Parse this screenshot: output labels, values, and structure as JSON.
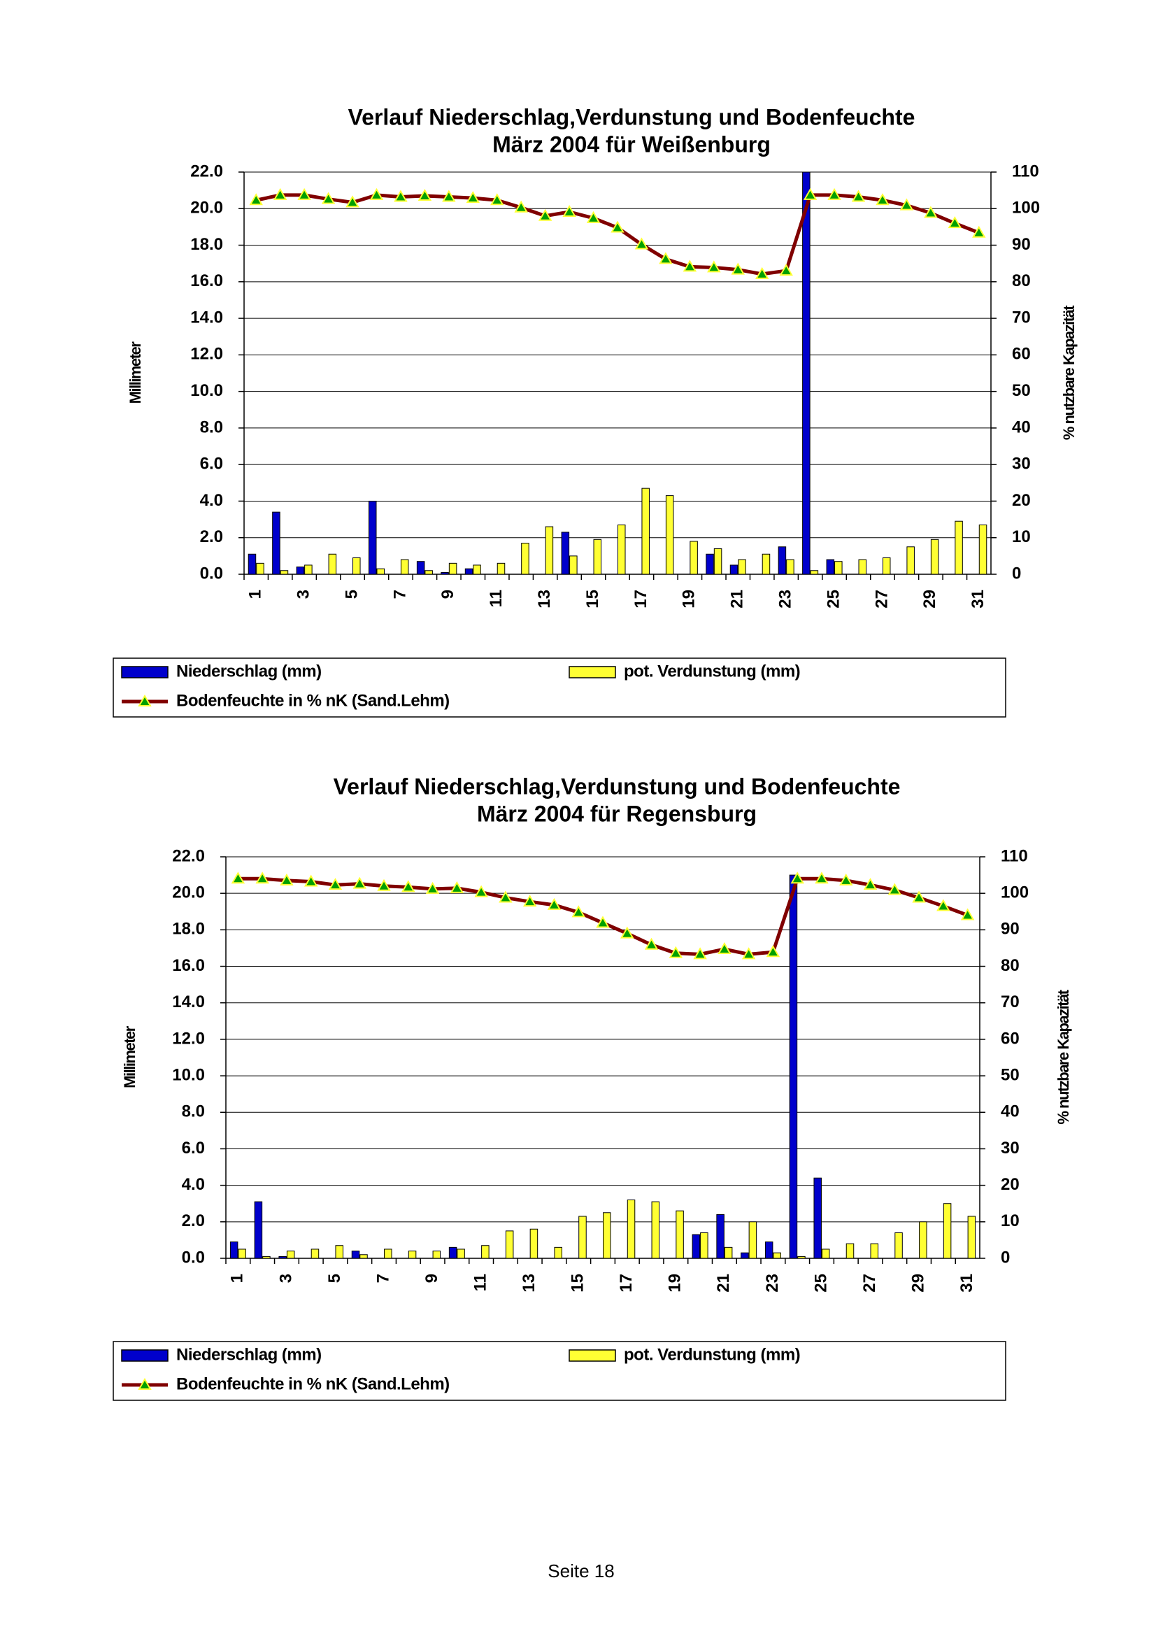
{
  "chart_data": [
    {
      "type": "bar-line",
      "title": "Verlauf Niederschlag,Verdunstung und Bodenfeuchte",
      "subtitle": "März 2004 für Weißenburg",
      "ylabel": "Millimeter",
      "y2label": "% nutzbare Kapazität",
      "categories": [
        "1",
        null,
        "3",
        null,
        "5",
        null,
        "7",
        null,
        "9",
        null,
        "11",
        null,
        "13",
        null,
        "15",
        null,
        "17",
        null,
        "19",
        null,
        "21",
        null,
        "23",
        null,
        "25",
        null,
        "27",
        null,
        "29",
        null,
        "31"
      ],
      "ylim": [
        0,
        22
      ],
      "yticks": [
        {
          "value": 0,
          "label": "0.0"
        },
        {
          "value": 2,
          "label": "2.0"
        },
        {
          "value": 4,
          "label": "4.0"
        },
        {
          "value": 6,
          "label": "6.0"
        },
        {
          "value": 8,
          "label": "8.0"
        },
        {
          "value": 10,
          "label": "10.0"
        },
        {
          "value": 12,
          "label": "12.0"
        },
        {
          "value": 14,
          "label": "14.0"
        },
        {
          "value": 16,
          "label": "16.0"
        },
        {
          "value": 18,
          "label": "18.0"
        },
        {
          "value": 20,
          "label": "20.0"
        },
        {
          "value": 22,
          "label": "22.0"
        }
      ],
      "y2lim": [
        0,
        110
      ],
      "y2ticks": [
        0,
        10,
        20,
        30,
        40,
        50,
        60,
        70,
        80,
        90,
        100,
        110
      ],
      "grid": true,
      "series": [
        {
          "name": "Niederschlag (mm)",
          "type": "bar",
          "color": "#0000cc",
          "values": [
            1.1,
            3.4,
            0.4,
            0,
            0,
            4.0,
            0,
            0.7,
            0.1,
            0.3,
            0,
            0,
            0,
            2.3,
            0,
            0,
            0,
            0,
            0,
            1.1,
            0.5,
            0,
            1.5,
            22.0,
            0.8,
            0,
            0,
            0,
            0,
            0,
            0
          ]
        },
        {
          "name": "pot. Verdunstung (mm)",
          "type": "bar",
          "color": "#ffff33",
          "values": [
            0.6,
            0.2,
            0.5,
            1.1,
            0.9,
            0.3,
            0.8,
            0.2,
            0.6,
            0.5,
            0.6,
            1.7,
            2.6,
            1.0,
            1.9,
            2.7,
            4.7,
            4.3,
            1.8,
            1.4,
            0.8,
            1.1,
            0.8,
            0.2,
            0.7,
            0.8,
            0.9,
            1.5,
            1.9,
            2.9,
            2.7
          ]
        },
        {
          "name": "Bodenfeuchte in % nK (Sand.Lehm)",
          "type": "line",
          "axis": "y2",
          "color": "#800000",
          "marker_color": "#00a000",
          "values": [
            102.3,
            103.7,
            103.7,
            102.6,
            101.7,
            103.7,
            103.2,
            103.5,
            103.2,
            102.9,
            102.3,
            100.3,
            98.0,
            99.1,
            97.4,
            94.8,
            90.2,
            86.2,
            84.1,
            83.9,
            83.3,
            82.1,
            83.0,
            103.7,
            103.7,
            103.2,
            102.3,
            100.9,
            98.8,
            96.0,
            93.4
          ]
        }
      ]
    },
    {
      "type": "bar-line",
      "title": "Verlauf Niederschlag,Verdunstung und Bodenfeuchte",
      "subtitle": "März 2004 für Regensburg",
      "ylabel": "Millimeter",
      "y2label": "% nutzbare Kapazität",
      "categories": [
        "1",
        null,
        "3",
        null,
        "5",
        null,
        "7",
        null,
        "9",
        null,
        "11",
        null,
        "13",
        null,
        "15",
        null,
        "17",
        null,
        "19",
        null,
        "21",
        null,
        "23",
        null,
        "25",
        null,
        "27",
        null,
        "29",
        null,
        "31"
      ],
      "ylim": [
        0,
        22
      ],
      "yticks": [
        {
          "value": 0,
          "label": "0.0"
        },
        {
          "value": 2,
          "label": "2.0"
        },
        {
          "value": 4,
          "label": "4.0"
        },
        {
          "value": 6,
          "label": "6.0"
        },
        {
          "value": 8,
          "label": "8.0"
        },
        {
          "value": 10,
          "label": "10.0"
        },
        {
          "value": 12,
          "label": "12.0"
        },
        {
          "value": 14,
          "label": "14.0"
        },
        {
          "value": 16,
          "label": "16.0"
        },
        {
          "value": 18,
          "label": "18.0"
        },
        {
          "value": 20,
          "label": "20.0"
        },
        {
          "value": 22,
          "label": "22.0"
        }
      ],
      "y2lim": [
        0,
        110
      ],
      "y2ticks": [
        0,
        10,
        20,
        30,
        40,
        50,
        60,
        70,
        80,
        90,
        100,
        110
      ],
      "grid": true,
      "series": [
        {
          "name": "Niederschlag (mm)",
          "type": "bar",
          "color": "#0000cc",
          "values": [
            0.9,
            3.1,
            0.1,
            0,
            0,
            0.4,
            0,
            0,
            0,
            0.6,
            0,
            0,
            0,
            0,
            0,
            0,
            0,
            0,
            0,
            1.3,
            2.4,
            0.3,
            0.9,
            21.0,
            4.4,
            0,
            0,
            0,
            0,
            0,
            0
          ]
        },
        {
          "name": "pot. Verdunstung (mm)",
          "type": "bar",
          "color": "#ffff33",
          "values": [
            0.5,
            0.1,
            0.4,
            0.5,
            0.7,
            0.2,
            0.5,
            0.4,
            0.4,
            0.5,
            0.7,
            1.5,
            1.6,
            0.6,
            2.3,
            2.5,
            3.2,
            3.1,
            2.6,
            1.4,
            0.6,
            2.0,
            0.3,
            0.1,
            0.5,
            0.8,
            0.8,
            1.4,
            2.0,
            3.0,
            2.3
          ]
        },
        {
          "name": "Bodenfeuchte in % nK (Sand.Lehm)",
          "type": "line",
          "axis": "y2",
          "color": "#800000",
          "marker_color": "#00a000",
          "values": [
            104.0,
            104.0,
            103.5,
            103.2,
            102.3,
            102.6,
            102.0,
            101.7,
            101.2,
            101.4,
            100.3,
            98.8,
            97.7,
            96.8,
            94.8,
            91.9,
            89.0,
            85.9,
            83.6,
            83.3,
            84.7,
            83.3,
            83.9,
            104.0,
            104.0,
            103.5,
            102.3,
            100.9,
            98.8,
            96.5,
            94.0
          ]
        }
      ]
    }
  ],
  "page": {
    "footer": "Seite 18"
  }
}
